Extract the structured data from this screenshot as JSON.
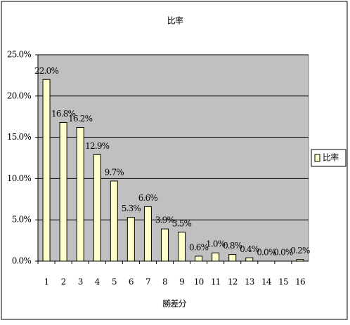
{
  "chart_data": {
    "type": "bar",
    "title": "比率",
    "x_label": "勝差分",
    "categories": [
      "1",
      "2",
      "3",
      "4",
      "5",
      "6",
      "7",
      "8",
      "9",
      "10",
      "11",
      "12",
      "13",
      "14",
      "15",
      "16"
    ],
    "series": [
      {
        "name": "比率",
        "color": "#ffffcc",
        "values": [
          22.0,
          16.8,
          16.2,
          12.9,
          9.7,
          5.3,
          6.6,
          3.9,
          3.5,
          0.6,
          1.0,
          0.8,
          0.4,
          0.0,
          0.0,
          0.2
        ],
        "value_labels": [
          "22.0%",
          "16.8%",
          "16.2%",
          "12.9%",
          "9.7%",
          "5.3%",
          "6.6%",
          "3.9%",
          "3.5%",
          "0.6%",
          "1.0%",
          "0.8%",
          "0.4%",
          "0.0%",
          "0.0%",
          "0.2%"
        ]
      }
    ],
    "ylim": [
      0,
      25
    ],
    "yticks": [
      {
        "value": 0,
        "label": "0.0%"
      },
      {
        "value": 5,
        "label": "5.0%"
      },
      {
        "value": 10,
        "label": "10.0%"
      },
      {
        "value": 15,
        "label": "15.0%"
      },
      {
        "value": 20,
        "label": "20.0%"
      },
      {
        "value": 25,
        "label": "25.0%"
      }
    ],
    "grid": true,
    "legend": "right",
    "plot_background": "#c0c0c0"
  }
}
